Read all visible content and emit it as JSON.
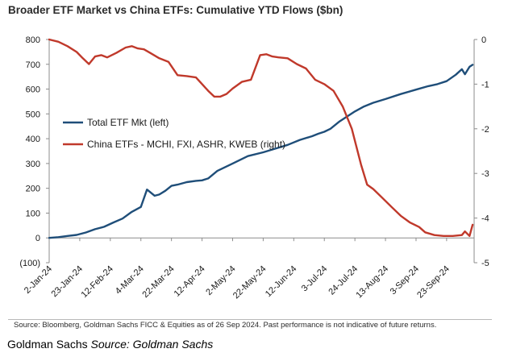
{
  "chart_data": {
    "type": "line",
    "title": "Broader ETF Market vs China ETFs: Cumulative YTD Flows ($bn)",
    "x_tick_labels": [
      "2-Jan-24",
      "23-Jan-24",
      "12-Feb-24",
      "4-Mar-24",
      "22-Mar-24",
      "12-Apr-24",
      "2-May-24",
      "22-May-24",
      "12-Jun-24",
      "3-Jul-24",
      "24-Jul-24",
      "13-Aug-24",
      "3-Sep-24",
      "23-Sep-24"
    ],
    "y_left": {
      "ylim": [
        -100,
        800
      ],
      "ticks": [
        -100,
        0,
        100,
        200,
        300,
        400,
        500,
        600,
        700,
        800
      ],
      "tick_labels": [
        "(100)",
        "0",
        "100",
        "200",
        "300",
        "400",
        "500",
        "600",
        "700",
        "800"
      ]
    },
    "y_right": {
      "ylim": [
        -5,
        0
      ],
      "ticks": [
        -5,
        -4,
        -3,
        -2,
        -1,
        0
      ],
      "tick_labels": [
        "-5",
        "-4",
        "-3",
        "-2",
        "-1",
        "0"
      ]
    },
    "x_range": [
      0,
      13.9
    ],
    "series": [
      {
        "name": "Total ETF Mkt (left)",
        "axis": "left",
        "color": "#1f4e79",
        "x": [
          0,
          0.3,
          0.6,
          0.9,
          1.2,
          1.5,
          1.8,
          2.1,
          2.4,
          2.7,
          3.0,
          3.2,
          3.45,
          3.6,
          3.8,
          4.0,
          4.2,
          4.5,
          4.8,
          5.0,
          5.2,
          5.5,
          6.0,
          6.5,
          7.0,
          7.4,
          7.8,
          8.2,
          8.6,
          8.8,
          9.0,
          9.2,
          9.5,
          10.0,
          10.3,
          10.6,
          11.0,
          11.5,
          12.0,
          12.4,
          12.7,
          13.0,
          13.3,
          13.5,
          13.6,
          13.75,
          13.85
        ],
        "values": [
          0,
          3,
          8,
          12,
          22,
          35,
          45,
          62,
          78,
          105,
          125,
          195,
          170,
          175,
          190,
          210,
          215,
          225,
          230,
          232,
          240,
          270,
          300,
          330,
          345,
          360,
          375,
          395,
          410,
          420,
          428,
          440,
          470,
          510,
          530,
          545,
          560,
          580,
          598,
          612,
          620,
          632,
          658,
          680,
          660,
          690,
          698
        ]
      },
      {
        "name": "China ETFs - MCHI, FXI, ASHR, KWEB (right)",
        "axis": "right",
        "color": "#c0392b",
        "x": [
          0,
          0.3,
          0.6,
          0.9,
          1.1,
          1.3,
          1.5,
          1.7,
          1.9,
          2.2,
          2.5,
          2.7,
          2.9,
          3.1,
          3.3,
          3.6,
          3.9,
          4.2,
          4.5,
          4.8,
          5.2,
          5.4,
          5.6,
          5.8,
          6.0,
          6.3,
          6.6,
          6.9,
          7.1,
          7.3,
          7.5,
          7.8,
          8.1,
          8.4,
          8.7,
          9.0,
          9.3,
          9.6,
          9.9,
          10.2,
          10.4,
          10.6,
          10.9,
          11.2,
          11.5,
          11.8,
          12.1,
          12.3,
          12.6,
          12.9,
          13.2,
          13.5,
          13.6,
          13.75,
          13.85
        ],
        "values": [
          0.0,
          -0.05,
          -0.15,
          -0.28,
          -0.42,
          -0.55,
          -0.38,
          -0.35,
          -0.4,
          -0.3,
          -0.18,
          -0.15,
          -0.2,
          -0.22,
          -0.3,
          -0.42,
          -0.5,
          -0.8,
          -0.82,
          -0.85,
          -1.15,
          -1.28,
          -1.28,
          -1.22,
          -1.1,
          -0.95,
          -0.9,
          -0.35,
          -0.33,
          -0.38,
          -0.4,
          -0.42,
          -0.55,
          -0.65,
          -0.9,
          -1.0,
          -1.15,
          -1.5,
          -2.0,
          -2.8,
          -3.25,
          -3.35,
          -3.55,
          -3.75,
          -3.95,
          -4.1,
          -4.2,
          -4.32,
          -4.38,
          -4.4,
          -4.4,
          -4.38,
          -4.3,
          -4.4,
          -4.15
        ]
      }
    ],
    "source": "Source: Bloomberg, Goldman Sachs FICC & Equities as of 26 Sep 2024. Past performance is not indicative of future returns."
  },
  "footer": {
    "brand": "Goldman Sachs",
    "source_label": "Source: Goldman Sachs"
  }
}
